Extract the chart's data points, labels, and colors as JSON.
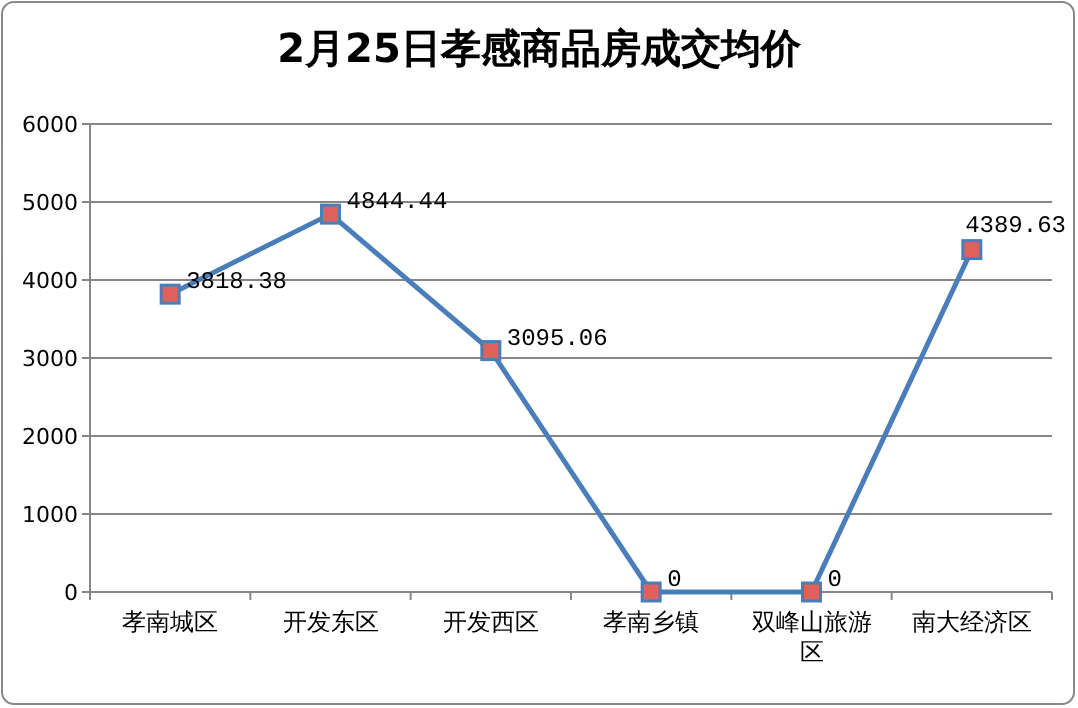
{
  "chart_data": {
    "type": "line",
    "title": "2月25日孝感商品房成交均价",
    "categories": [
      "孝南城区",
      "开发东区",
      "开发西区",
      "孝南乡镇",
      "双峰山旅游区",
      "南大经济区"
    ],
    "values": [
      3818.38,
      4844.44,
      3095.06,
      0,
      0,
      4389.63
    ],
    "color": "#4a7ebb",
    "marker": "square",
    "line_style": "solid",
    "data_labels": true,
    "grid": "y",
    "ylim": [
      0,
      6000
    ],
    "yticks": [
      0,
      1000,
      2000,
      3000,
      4000,
      5000,
      6000
    ]
  }
}
